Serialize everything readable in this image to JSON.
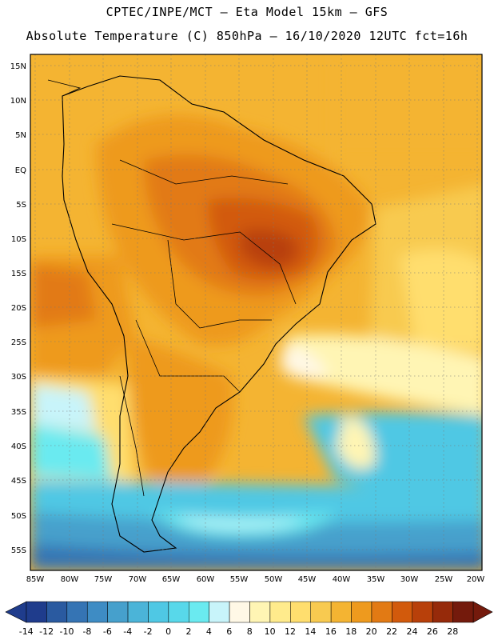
{
  "header": {
    "line1": "CPTEC/INPE/MCT –  Eta Model 15km – GFS",
    "line2": "Absolute Temperature (C) 850hPa – 16/10/2020 12UTC fct=16h"
  },
  "axes": {
    "lat_labels": [
      "15N",
      "10N",
      "5N",
      "EQ",
      "5S",
      "10S",
      "15S",
      "20S",
      "25S",
      "30S",
      "35S",
      "40S",
      "45S",
      "50S",
      "55S"
    ],
    "lon_labels": [
      "85W",
      "80W",
      "75W",
      "70W",
      "65W",
      "60W",
      "55W",
      "50W",
      "45W",
      "40W",
      "35W",
      "30W",
      "25W",
      "20W"
    ]
  },
  "legend": {
    "values": [
      "-14",
      "-12",
      "-10",
      "-8",
      "-6",
      "-4",
      "-2",
      "0",
      "2",
      "4",
      "6",
      "8",
      "10",
      "12",
      "14",
      "16",
      "18",
      "20",
      "22",
      "24",
      "26",
      "28"
    ],
    "colors": [
      "#1f3c8c",
      "#2a5aa0",
      "#3574b4",
      "#3e8cc4",
      "#46a0cc",
      "#4bb4d8",
      "#4fc8e4",
      "#58d8ea",
      "#6aeaf0",
      "#c8f4fa",
      "#fff8e6",
      "#fff5b4",
      "#ffeb8c",
      "#ffde6e",
      "#f8ca50",
      "#f4b432",
      "#ee9a1e",
      "#e27a14",
      "#d25a0c",
      "#b8400a",
      "#962a0a",
      "#741a0c"
    ]
  }
}
